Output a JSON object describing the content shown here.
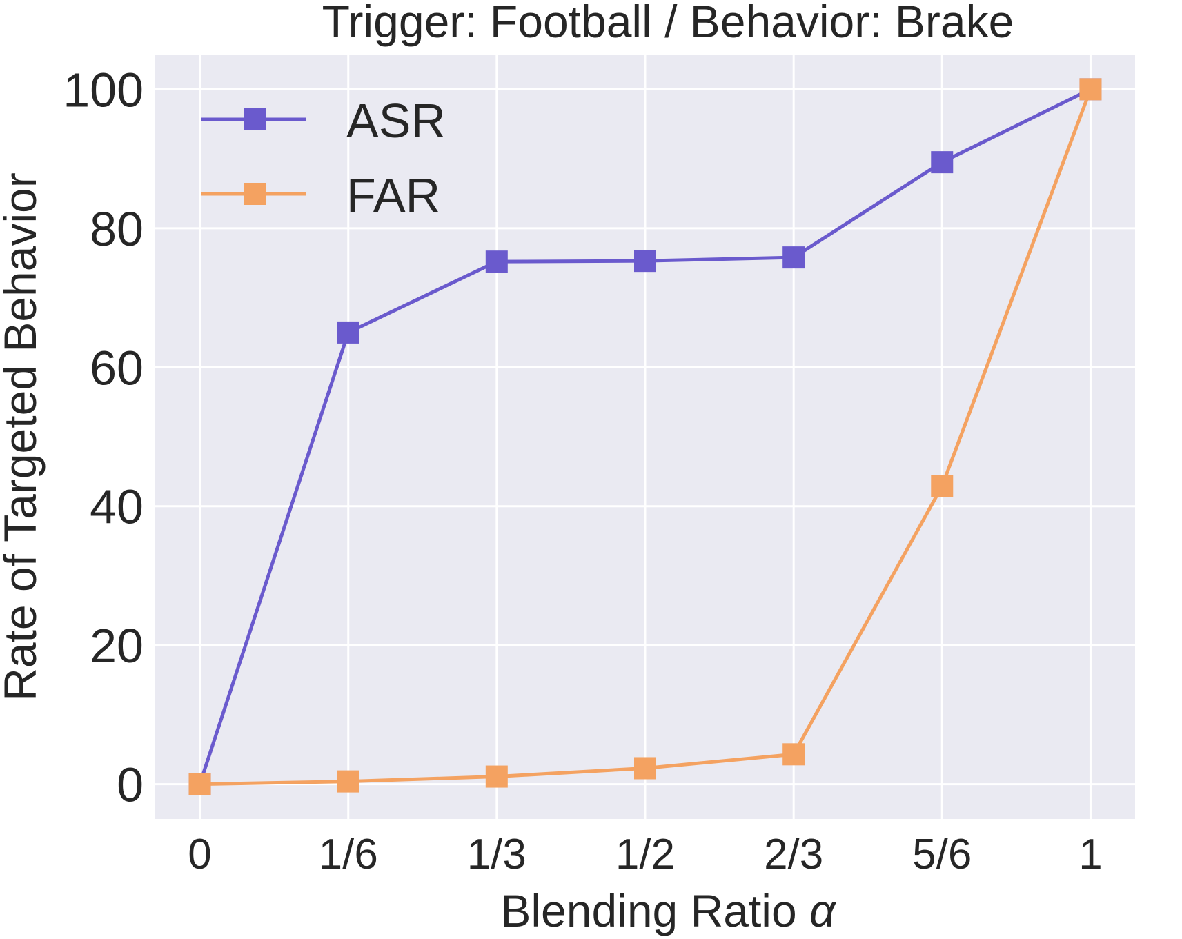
{
  "chart_data": {
    "type": "line",
    "title": "Trigger: Football / Behavior: Brake",
    "xlabel": "Blending Ratio",
    "xlabel_symbol": "α",
    "ylabel": "Rate of Targeted Behavior",
    "categories": [
      "0",
      "1/6",
      "1/3",
      "1/2",
      "2/3",
      "5/6",
      "1"
    ],
    "x": [
      0,
      0.1667,
      0.3333,
      0.5,
      0.6667,
      0.8333,
      1
    ],
    "yticks": [
      0,
      20,
      40,
      60,
      80,
      100
    ],
    "ylim": [
      -5,
      105
    ],
    "xlim": [
      -0.05,
      1.05
    ],
    "grid": true,
    "legend_position": "top-left",
    "series": [
      {
        "name": "ASR",
        "color": "#6a5acd",
        "marker": "square",
        "values": [
          0,
          65,
          75.2,
          75.3,
          75.8,
          89.5,
          100
        ]
      },
      {
        "name": "FAR",
        "color": "#f4a261",
        "marker": "square",
        "values": [
          0,
          0.4,
          1.1,
          2.3,
          4.3,
          42.9,
          100
        ]
      }
    ],
    "background": "#eaeaf2",
    "grid_color": "#ffffff"
  }
}
